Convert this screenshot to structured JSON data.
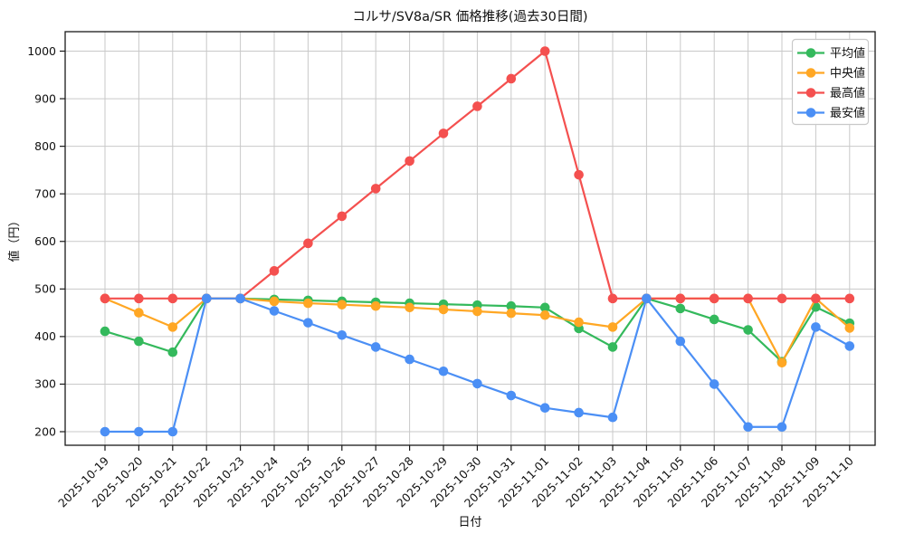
{
  "chart_data": {
    "type": "line",
    "title": "コルサ/SV8a/SR 価格推移(過去30日間)",
    "xlabel": "日付",
    "ylabel": "値（円）",
    "grid": true,
    "legend_position": "upper right",
    "ylim": [
      170,
      1040
    ],
    "yticks": [
      200,
      300,
      400,
      500,
      600,
      700,
      800,
      900,
      1000
    ],
    "x": [
      "2025-10-19",
      "2025-10-20",
      "2025-10-21",
      "2025-10-22",
      "2025-10-23",
      "2025-10-24",
      "2025-10-25",
      "2025-10-26",
      "2025-10-27",
      "2025-10-28",
      "2025-10-29",
      "2025-10-30",
      "2025-10-31",
      "2025-11-01",
      "2025-11-02",
      "2025-11-03",
      "2025-11-04",
      "2025-11-05",
      "2025-11-06",
      "2025-11-07",
      "2025-11-08",
      "2025-11-09",
      "2025-11-10"
    ],
    "series": [
      {
        "key": "average",
        "name": "平均値",
        "color": "#34b95c",
        "values": [
          411,
          390,
          367,
          480,
          480,
          478,
          476,
          474,
          472,
          470,
          468,
          466,
          464,
          461,
          417,
          378,
          480,
          459,
          436,
          414,
          347,
          462,
          428
        ]
      },
      {
        "key": "median",
        "name": "中央値",
        "color": "#ffa724",
        "values": [
          480,
          450,
          420,
          480,
          480,
          474,
          470,
          467,
          464,
          461,
          457,
          453,
          449,
          445,
          430,
          420,
          480,
          480,
          480,
          480,
          345,
          480,
          418
        ]
      },
      {
        "key": "highest",
        "name": "最高値",
        "color": "#f4504f",
        "values": [
          480,
          480,
          480,
          480,
          480,
          538,
          596,
          653,
          711,
          769,
          827,
          884,
          942,
          1000,
          740,
          480,
          480,
          480,
          480,
          480,
          480,
          480,
          480
        ]
      },
      {
        "key": "lowest",
        "name": "最安値",
        "color": "#4b8ff5",
        "values": [
          200,
          200,
          200,
          480,
          480,
          454,
          429,
          403,
          378,
          352,
          327,
          301,
          276,
          250,
          240,
          230,
          480,
          390,
          300,
          210,
          210,
          420,
          380
        ]
      }
    ]
  }
}
